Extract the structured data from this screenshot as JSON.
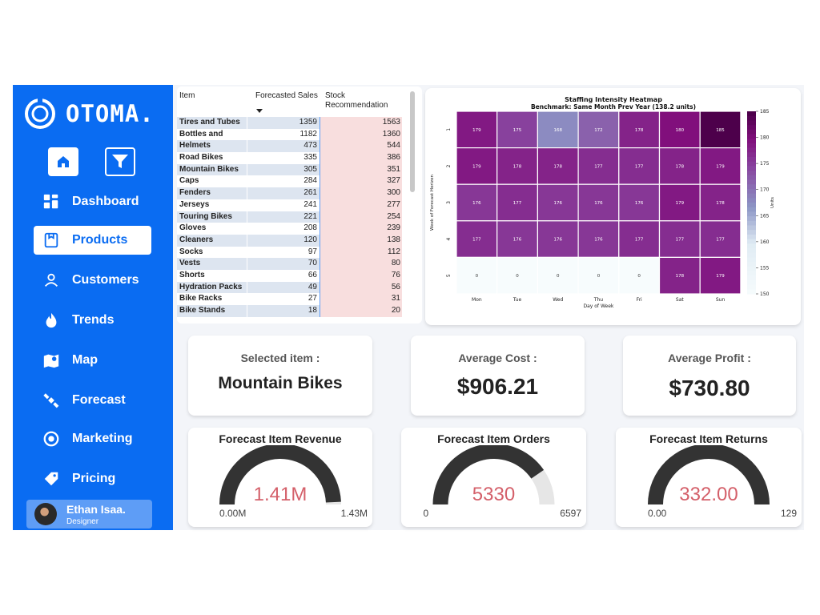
{
  "brand": {
    "name": "OTOMA."
  },
  "nav": [
    {
      "label": "Dashboard",
      "icon": "dashboard-icon",
      "active": false
    },
    {
      "label": "Products",
      "icon": "box-icon",
      "active": true
    },
    {
      "label": "Customers",
      "icon": "user-icon",
      "active": false
    },
    {
      "label": "Trends",
      "icon": "fire-icon",
      "active": false
    },
    {
      "label": "Map",
      "icon": "map-icon",
      "active": false
    },
    {
      "label": "Forecast",
      "icon": "satellite-icon",
      "active": false
    },
    {
      "label": "Marketing",
      "icon": "target-icon",
      "active": false
    },
    {
      "label": "Pricing",
      "icon": "price-tag-icon",
      "active": false
    }
  ],
  "user": {
    "name": "Ethan Isaa.",
    "role": "Designer"
  },
  "table": {
    "headers": {
      "item": "Item",
      "sales": "Forecasted Sales",
      "stock": "Stock Recommendation"
    },
    "rows": [
      [
        "Tires and Tubes",
        "1359",
        "1563"
      ],
      [
        "Bottles and Cages",
        "1182",
        "1360"
      ],
      [
        "Helmets",
        "473",
        "544"
      ],
      [
        "Road Bikes",
        "335",
        "386"
      ],
      [
        "Mountain Bikes",
        "305",
        "351"
      ],
      [
        "Caps",
        "284",
        "327"
      ],
      [
        "Fenders",
        "261",
        "300"
      ],
      [
        "Jerseys",
        "241",
        "277"
      ],
      [
        "Touring Bikes",
        "221",
        "254"
      ],
      [
        "Gloves",
        "208",
        "239"
      ],
      [
        "Cleaners",
        "120",
        "138"
      ],
      [
        "Socks",
        "97",
        "112"
      ],
      [
        "Vests",
        "70",
        "80"
      ],
      [
        "Shorts",
        "66",
        "76"
      ],
      [
        "Hydration Packs",
        "49",
        "56"
      ],
      [
        "Bike Racks",
        "27",
        "31"
      ],
      [
        "Bike Stands",
        "18",
        "20"
      ]
    ]
  },
  "chart_data": {
    "type": "heatmap",
    "title": "Staffing Intensity Heatmap",
    "subtitle": "Benchmark: Same Month Prev Year (138.2 units)",
    "xlabel": "Day of Week",
    "ylabel": "Week of Forecast Horizon",
    "x": [
      "Mon",
      "Tue",
      "Wed",
      "Thu",
      "Fri",
      "Sat",
      "Sun"
    ],
    "y": [
      "1",
      "2",
      "3",
      "4",
      "5"
    ],
    "values": [
      [
        179,
        175,
        168,
        172,
        178,
        180,
        185
      ],
      [
        179,
        178,
        178,
        177,
        177,
        178,
        179
      ],
      [
        176,
        177,
        176,
        176,
        176,
        179,
        178
      ],
      [
        177,
        176,
        176,
        176,
        177,
        177,
        177
      ],
      [
        0,
        0,
        0,
        0,
        0,
        178,
        179
      ]
    ],
    "colorbar": {
      "label": "Units",
      "min": 150,
      "max": 185,
      "ticks": [
        150,
        155,
        160,
        165,
        170,
        175,
        180,
        185
      ]
    },
    "colors": {
      "low": "#f7fbfd",
      "mid": "#8c96c6",
      "high": "#4d004b"
    }
  },
  "cards": {
    "selected": {
      "label": "Selected item :",
      "value": "Mountain Bikes"
    },
    "avg_cost": {
      "label": "Average Cost :",
      "value": "$906.21"
    },
    "avg_profit": {
      "label": "Average Profit :",
      "value": "$730.80"
    }
  },
  "gauges": [
    {
      "title": "Forecast Item Revenue",
      "value": "1.41M",
      "min": "0.00M",
      "max": "1.43M",
      "fraction": 0.986
    },
    {
      "title": "Forecast Item Orders",
      "value": "5330",
      "min": "0",
      "max": "6597",
      "fraction": 0.808
    },
    {
      "title": "Forecast Item Returns",
      "value": "332.00",
      "min": "0.00",
      "max": "129",
      "fraction": 1.0
    }
  ],
  "colors": {
    "accent": "#0a6cf2",
    "gauge_fill": "#333333",
    "gauge_track": "#e6e6e6",
    "gauge_value": "#d4606a"
  }
}
